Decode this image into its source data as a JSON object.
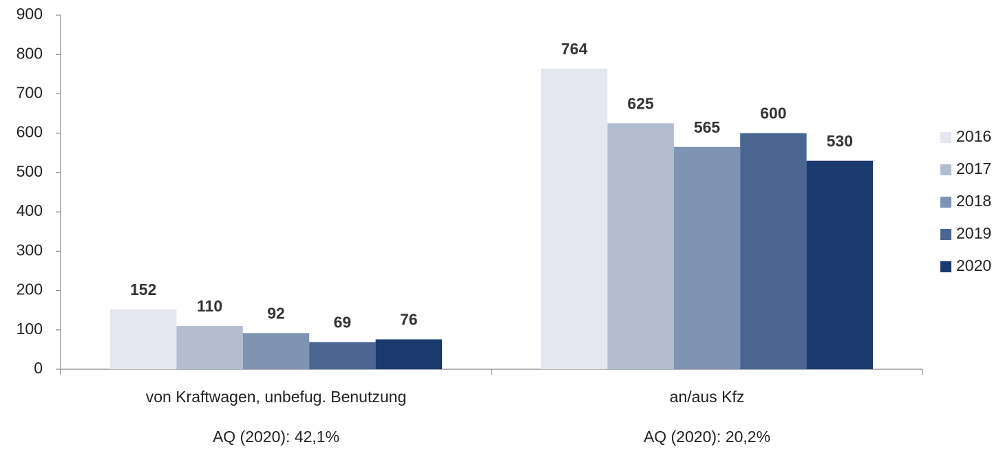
{
  "chart_data": {
    "type": "bar",
    "categories": [
      "von Kraftwagen, unbefug. Benutzung",
      "an/aus Kfz"
    ],
    "annotations": [
      "AQ (2020): 42,1%",
      "AQ (2020): 20,2%"
    ],
    "series": [
      {
        "name": "2016",
        "color": "#e4e7f0",
        "values": [
          152,
          764
        ]
      },
      {
        "name": "2017",
        "color": "#b2bdd0",
        "values": [
          110,
          625
        ]
      },
      {
        "name": "2018",
        "color": "#7f93b3",
        "values": [
          92,
          565
        ]
      },
      {
        "name": "2019",
        "color": "#4a6590",
        "values": [
          69,
          600
        ]
      },
      {
        "name": "2020",
        "color": "#1a3a6e",
        "values": [
          76,
          530
        ]
      }
    ],
    "ylim": [
      0,
      900
    ],
    "yticks": [
      0,
      100,
      200,
      300,
      400,
      500,
      600,
      700,
      800,
      900
    ],
    "grid": false,
    "legend": "right"
  }
}
